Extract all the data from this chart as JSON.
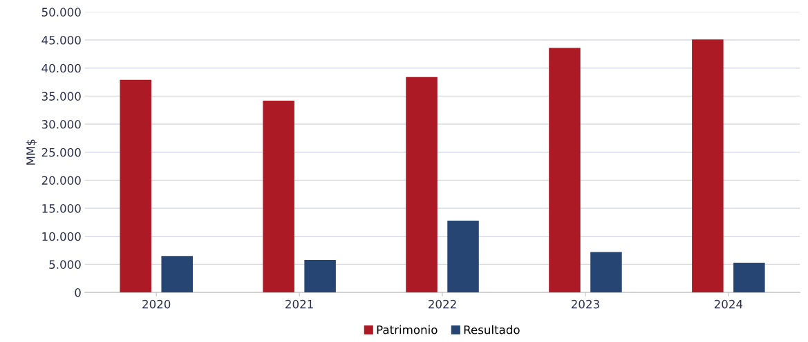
{
  "chart_data": {
    "type": "bar",
    "ylabel": "MM$",
    "categories": [
      "2020",
      "2021",
      "2022",
      "2023",
      "2024"
    ],
    "series": [
      {
        "name": "Patrimonio",
        "color": "#ab1a25",
        "values": [
          37900,
          34200,
          38400,
          43600,
          45100
        ]
      },
      {
        "name": "Resultado",
        "color": "#264573",
        "values": [
          6500,
          5800,
          12800,
          7200,
          5300
        ]
      }
    ],
    "ylim": [
      0,
      50000
    ],
    "yticks": [
      {
        "value": 0,
        "label": "0"
      },
      {
        "value": 5000,
        "label": "5.000"
      },
      {
        "value": 10000,
        "label": "10.000"
      },
      {
        "value": 15000,
        "label": "15.000"
      },
      {
        "value": 20000,
        "label": "20.000"
      },
      {
        "value": 25000,
        "label": "25.000"
      },
      {
        "value": 30000,
        "label": "30.000"
      },
      {
        "value": 35000,
        "label": "35.000"
      },
      {
        "value": 40000,
        "label": "40.000"
      },
      {
        "value": 45000,
        "label": "45.000"
      },
      {
        "value": 50000,
        "label": "50.000"
      }
    ],
    "grid": "y",
    "legend": "bottom"
  }
}
